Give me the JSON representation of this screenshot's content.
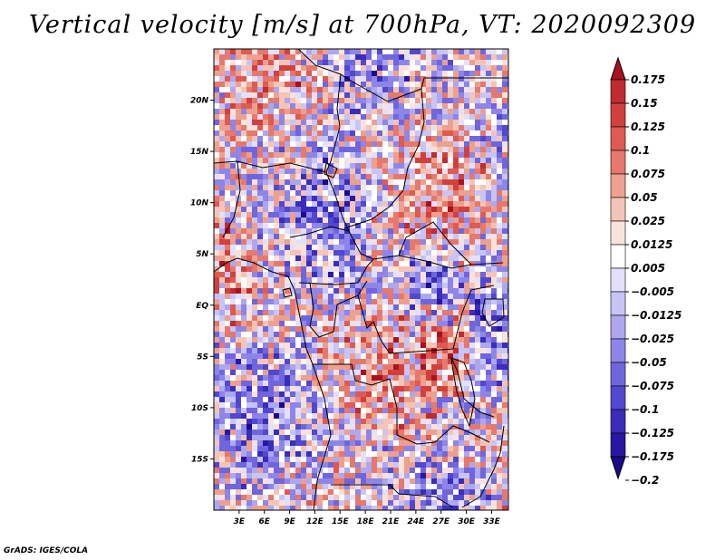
{
  "title": "Vertical velocity [m/s] at 700hPa, VT: 2020092309",
  "credit": "GrADS: IGES/COLA",
  "map": {
    "lon_range": [
      0,
      35
    ],
    "lat_range": [
      -20,
      25
    ],
    "lon_ticks": [
      3,
      6,
      9,
      12,
      15,
      18,
      21,
      24,
      27,
      30,
      33
    ],
    "lon_tick_labels": [
      "3E",
      "6E",
      "9E",
      "12E",
      "15E",
      "18E",
      "21E",
      "24E",
      "27E",
      "30E",
      "33E"
    ],
    "lat_ticks": [
      20,
      15,
      10,
      5,
      0,
      -5,
      -10,
      -15
    ],
    "lat_tick_labels": [
      "20N",
      "15N",
      "10N",
      "5N",
      "EQ",
      "5S",
      "10S",
      "15S"
    ]
  },
  "colorbar": {
    "units": "m/s",
    "boundaries": [
      -0.2,
      -0.175,
      -0.125,
      -0.1,
      -0.075,
      -0.05,
      -0.025,
      -0.0125,
      -0.005,
      0.005,
      0.0125,
      0.025,
      0.05,
      0.075,
      0.1,
      0.125,
      0.15,
      0.175
    ],
    "labels": [
      "0.175",
      "0.15",
      "0.125",
      "0.1",
      "0.075",
      "0.05",
      "0.025",
      "0.0125",
      "0.005",
      "−0.005",
      "−0.0125",
      "−0.025",
      "−0.05",
      "−0.075",
      "−0.1",
      "−0.125",
      "−0.175",
      "−0.2"
    ],
    "colors_top_to_bottom": [
      "#a8121e",
      "#c02a30",
      "#d2403d",
      "#de5a52",
      "#e6786c",
      "#eda08f",
      "#f4c4b6",
      "#fae2db",
      "#ffffff",
      "#e3e0fb",
      "#c8c4f6",
      "#ada7f0",
      "#8d85e8",
      "#6f66de",
      "#5247d0",
      "#3a2dbb",
      "#2917a4",
      "#1a0a8a"
    ]
  }
}
